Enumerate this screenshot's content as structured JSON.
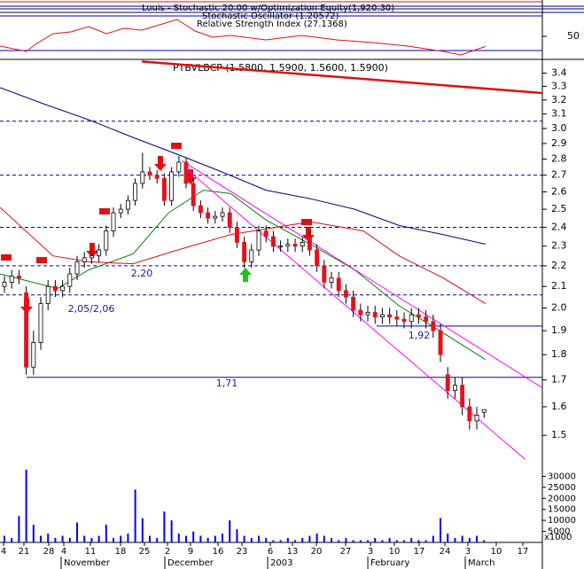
{
  "chart_data": {
    "type": "candlestick",
    "title": "PTBVLBCP (1.5800, 1.5900, 1.5600, 1.5900)",
    "indicator_labels": [
      "Louis - Stochastic 20.00 w/Optimization Equity(1,920.30)",
      "Stochastic Oscillator (1.20572)",
      "Relative Strength Index (27.1368)"
    ],
    "log_scale": true,
    "xlim": [
      -0.61,
      74.02
    ],
    "xticks": [
      {
        "value": -0.12,
        "label": "4"
      },
      {
        "value": 2.68,
        "label": "21"
      },
      {
        "value": 6.1,
        "label": "28"
      },
      {
        "value": 8.17,
        "label": "4"
      },
      {
        "value": 11.83,
        "label": "11"
      },
      {
        "value": 15.98,
        "label": "18"
      },
      {
        "value": 19.27,
        "label": "25"
      },
      {
        "value": 22.44,
        "label": "2"
      },
      {
        "value": 25.61,
        "label": "9"
      },
      {
        "value": 29.39,
        "label": "16"
      },
      {
        "value": 32.68,
        "label": "23"
      },
      {
        "value": 36.59,
        "label": "6"
      },
      {
        "value": 39.63,
        "label": "13"
      },
      {
        "value": 42.93,
        "label": "20"
      },
      {
        "value": 46.95,
        "label": "27"
      },
      {
        "value": 50.37,
        "label": "3"
      },
      {
        "value": 53.66,
        "label": "10"
      },
      {
        "value": 57.07,
        "label": "17"
      },
      {
        "value": 60.61,
        "label": "24"
      },
      {
        "value": 63.78,
        "label": "3"
      },
      {
        "value": 67.68,
        "label": "10"
      },
      {
        "value": 71.34,
        "label": "17"
      }
    ],
    "month_labels": [
      "November",
      "December",
      "2003",
      "February",
      "March"
    ],
    "ylim": [
      1.416,
      3.5
    ],
    "yticks": [
      3.4,
      3.3,
      3.2,
      3.1,
      {
        "value": 3,
        "label": "3.0"
      },
      2.9,
      2.8,
      2.7,
      2.6,
      2.5,
      2.4,
      2.3,
      2.2,
      2.1,
      {
        "value": 2,
        "label": "2.0"
      },
      1.9,
      1.8,
      1.7,
      1.6,
      1.5
    ],
    "open": [
      2.1,
      2.12,
      2.15,
      2.07,
      1.75,
      1.85,
      2.02,
      2.1,
      2.08,
      2.1,
      2.16,
      2.22,
      2.24,
      2.25,
      2.28,
      2.38,
      2.48,
      2.5,
      2.55,
      2.65,
      2.72,
      2.7,
      2.68,
      2.55,
      2.72,
      2.78,
      2.65,
      2.52,
      2.48,
      2.45,
      2.46,
      2.48,
      2.4,
      2.32,
      2.22,
      2.28,
      2.38,
      2.35,
      2.3,
      2.3,
      2.31,
      2.3,
      2.35,
      2.28,
      2.2,
      2.12,
      2.14,
      2.08,
      2.05,
      1.99,
      1.97,
      1.98,
      1.96,
      1.97,
      1.96,
      1.95,
      1.94,
      1.97,
      1.96,
      1.94,
      1.9,
      1.72,
      1.66,
      1.68,
      1.6,
      1.55,
      1.58
    ],
    "high": [
      2.15,
      2.18,
      2.18,
      2.1,
      1.9,
      2.05,
      2.13,
      2.13,
      2.13,
      2.19,
      2.25,
      2.27,
      2.28,
      2.31,
      2.41,
      2.51,
      2.53,
      2.58,
      2.68,
      2.84,
      2.75,
      2.73,
      2.71,
      2.75,
      2.82,
      2.81,
      2.68,
      2.55,
      2.51,
      2.49,
      2.51,
      2.51,
      2.43,
      2.35,
      2.31,
      2.41,
      2.41,
      2.38,
      2.33,
      2.34,
      2.34,
      2.35,
      2.38,
      2.31,
      2.23,
      2.17,
      2.17,
      2.11,
      2.08,
      2.02,
      2.01,
      2.01,
      2.0,
      2.0,
      1.99,
      1.98,
      2.0,
      2.0,
      1.99,
      1.97,
      1.93,
      1.75,
      1.71,
      1.71,
      1.63,
      1.6,
      1.59
    ],
    "low": [
      2.07,
      2.09,
      2.11,
      1.72,
      1.72,
      1.82,
      1.99,
      2.05,
      2.05,
      2.07,
      2.13,
      2.19,
      2.21,
      2.22,
      2.25,
      2.35,
      2.45,
      2.47,
      2.52,
      2.62,
      2.67,
      2.65,
      2.52,
      2.52,
      2.69,
      2.62,
      2.49,
      2.45,
      2.42,
      2.42,
      2.43,
      2.37,
      2.29,
      2.19,
      2.19,
      2.25,
      2.32,
      2.27,
      2.27,
      2.27,
      2.27,
      2.27,
      2.25,
      2.17,
      2.09,
      2.09,
      2.05,
      2.02,
      1.96,
      1.94,
      1.94,
      1.93,
      1.93,
      1.93,
      1.92,
      1.91,
      1.91,
      1.93,
      1.91,
      1.87,
      1.77,
      1.63,
      1.63,
      1.57,
      1.52,
      1.52,
      1.56
    ],
    "close": [
      2.12,
      2.15,
      2.14,
      1.75,
      1.85,
      2.02,
      2.1,
      2.08,
      2.1,
      2.16,
      2.22,
      2.24,
      2.25,
      2.28,
      2.38,
      2.48,
      2.5,
      2.55,
      2.65,
      2.72,
      2.7,
      2.68,
      2.55,
      2.72,
      2.78,
      2.65,
      2.52,
      2.48,
      2.45,
      2.46,
      2.48,
      2.4,
      2.32,
      2.22,
      2.28,
      2.38,
      2.35,
      2.3,
      2.3,
      2.31,
      2.3,
      2.32,
      2.28,
      2.2,
      2.12,
      2.14,
      2.08,
      2.05,
      1.99,
      1.97,
      1.98,
      1.96,
      1.97,
      1.96,
      1.95,
      1.94,
      1.97,
      1.96,
      1.94,
      1.9,
      1.8,
      1.66,
      1.68,
      1.6,
      1.55,
      1.57,
      1.59
    ],
    "up_color": "#ffffff",
    "down_color": "#e8101a",
    "moving_averages": [
      {
        "color": "#008000",
        "x": [
          -0.6,
          7.3,
          11.6,
          17.7,
          22.6,
          27.4,
          31.1,
          36,
          42.1,
          48.2,
          54.3,
          60.4,
          66.2
        ],
        "values": [
          2.16,
          2.09,
          2.18,
          2.26,
          2.48,
          2.61,
          2.59,
          2.44,
          2.31,
          2.18,
          2.01,
          1.89,
          1.78
        ]
      },
      {
        "color": "#d01010",
        "x": [
          -0.6,
          6.7,
          11.6,
          17.7,
          23.8,
          31.1,
          42.1,
          49.4,
          54.3,
          60.4,
          66.2
        ],
        "values": [
          2.51,
          2.25,
          2.22,
          2.21,
          2.28,
          2.36,
          2.43,
          2.38,
          2.25,
          2.14,
          2.02
        ]
      },
      {
        "color": "#000080",
        "x": [
          -0.6,
          5.5,
          11.6,
          17.7,
          23.8,
          29.9,
          36,
          42.1,
          48.2,
          54.3,
          60.4,
          66.2
        ],
        "values": [
          3.29,
          3.17,
          3.06,
          2.94,
          2.83,
          2.72,
          2.61,
          2.56,
          2.5,
          2.41,
          2.36,
          2.31
        ]
      }
    ],
    "trend_lines": [
      {
        "color": "#e01010",
        "x": [
          18.9,
          74.02
        ],
        "values": [
          3.49,
          3.25
        ]
      },
      {
        "color": "#ff00ff",
        "x": [
          24.4,
          74.02
        ],
        "values": [
          2.79,
          1.67
        ]
      },
      {
        "color": "#ff00ff",
        "x": [
          25,
          71.7
        ],
        "values": [
          2.74,
          1.42
        ]
      }
    ],
    "levels": [
      3.05,
      2.7,
      2.4,
      2.2,
      2.06
    ],
    "level_color": "#0000c0",
    "support_lines": [
      {
        "x": [
          51.2,
          74.02
        ],
        "value": 1.92
      },
      {
        "x": [
          3.05,
          74.02
        ],
        "value": 1.71
      }
    ],
    "annotations": [
      "2,20",
      "2,05/2,06",
      "1,92",
      "1,71"
    ],
    "volume": {
      "color": "#0000ff",
      "ylim": [
        0,
        37000
      ],
      "yticks": [
        30000,
        25000,
        20000,
        15000,
        10000,
        5000
      ],
      "unit_label": "x1000",
      "values": [
        3000,
        2000,
        12000,
        33000,
        8000,
        3000,
        4000,
        2000,
        3000,
        2000,
        9000,
        3000,
        2000,
        3000,
        8000,
        2000,
        3000,
        4000,
        24000,
        11000,
        3000,
        2000,
        14000,
        10000,
        4000,
        3000,
        5000,
        3000,
        2000,
        3000,
        4000,
        10000,
        6000,
        3000,
        2000,
        3000,
        2000,
        1000,
        1000,
        2000,
        1000,
        2000,
        3000,
        4000,
        3000,
        2000,
        1000,
        2000,
        1000,
        1000,
        1000,
        2000,
        1000,
        2000,
        1000,
        1000,
        2000,
        1000,
        1000,
        3000,
        11000,
        4000,
        2000,
        3000,
        2000,
        3000,
        1000
      ]
    },
    "indicator": {
      "ylim": [
        0,
        132
      ],
      "yticks": [
        50
      ],
      "series": [
        {
          "color": "#e01010",
          "x": [
            -0.6,
            3.05,
            4.27,
            6.71,
            9.15,
            11.59,
            14.02,
            16.46,
            18.9,
            21.34,
            23.78,
            26.22,
            28.66,
            31.1,
            36,
            40.85,
            45.73,
            50.61,
            55.49,
            60.37,
            62.8,
            66.2
          ],
          "values": [
            28,
            16,
            32,
            56,
            60,
            72,
            56,
            68,
            64,
            76,
            88,
            62,
            48,
            52,
            42,
            52,
            42,
            36,
            28,
            16,
            8,
            27.1368
          ]
        }
      ]
    }
  }
}
